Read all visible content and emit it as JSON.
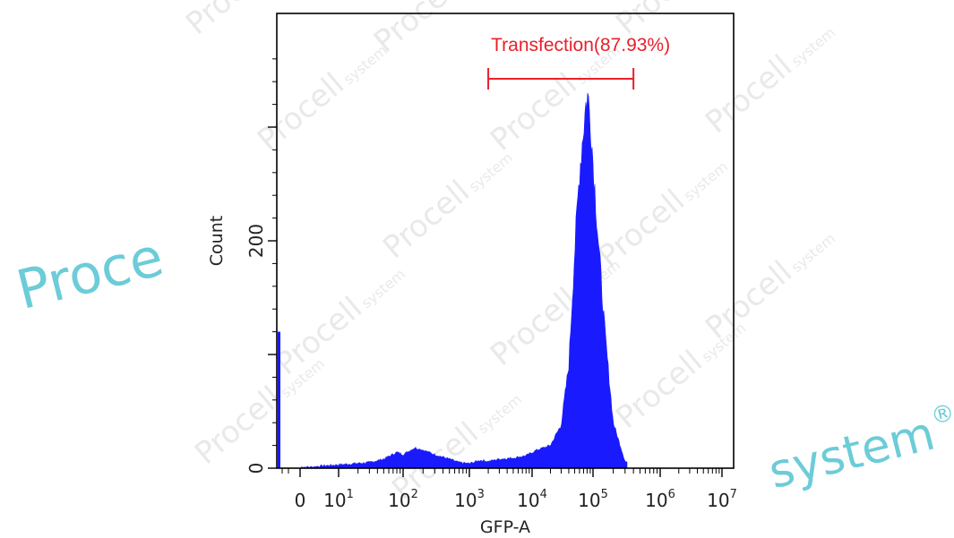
{
  "chart_data": {
    "type": "area",
    "title": "",
    "xlabel": "GFP-A",
    "ylabel": "Count",
    "x_scale": "biexponential",
    "x_ticks": [
      {
        "value": 0,
        "label": "0",
        "exp": ""
      },
      {
        "value": 10,
        "label": "10",
        "exp": "1"
      },
      {
        "value": 100,
        "label": "10",
        "exp": "2"
      },
      {
        "value": 1000,
        "label": "10",
        "exp": "3"
      },
      {
        "value": 10000,
        "label": "10",
        "exp": "4"
      },
      {
        "value": 100000,
        "label": "10",
        "exp": "5"
      },
      {
        "value": 1000000,
        "label": "10",
        "exp": "6"
      },
      {
        "value": 10000000,
        "label": "10",
        "exp": "7"
      }
    ],
    "y_ticks": [
      {
        "value": 0,
        "label": "0"
      },
      {
        "value": 200,
        "label": "200"
      }
    ],
    "ylim": [
      0,
      400
    ],
    "series": [
      {
        "color": "#1a1aff",
        "x": [
          0,
          0.3,
          1,
          3,
          10,
          30,
          50,
          80,
          100,
          150,
          200,
          300,
          500,
          700,
          1000,
          1500,
          2000,
          3000,
          5000,
          8000,
          12000,
          20000,
          30000,
          40000,
          50000,
          60000,
          70000,
          80000,
          90000,
          100000,
          120000,
          150000,
          200000,
          300000,
          500000,
          1000000
        ],
        "y": [
          120,
          0,
          1,
          2,
          3,
          5,
          8,
          14,
          12,
          18,
          16,
          12,
          8,
          5,
          4,
          7,
          6,
          8,
          9,
          11,
          16,
          20,
          38,
          90,
          190,
          260,
          300,
          330,
          310,
          270,
          200,
          120,
          40,
          6,
          1,
          0
        ]
      }
    ],
    "gates": [
      {
        "label": "Transfection(87.93%)",
        "from": 2000,
        "to": 400000,
        "color": "#e8202a"
      }
    ]
  },
  "watermark": {
    "brand": "Procell",
    "suffix": "system",
    "left_fragment": "Proce",
    "right_fragment": "system",
    "registered": "®",
    "color": "#1fb2c4"
  }
}
